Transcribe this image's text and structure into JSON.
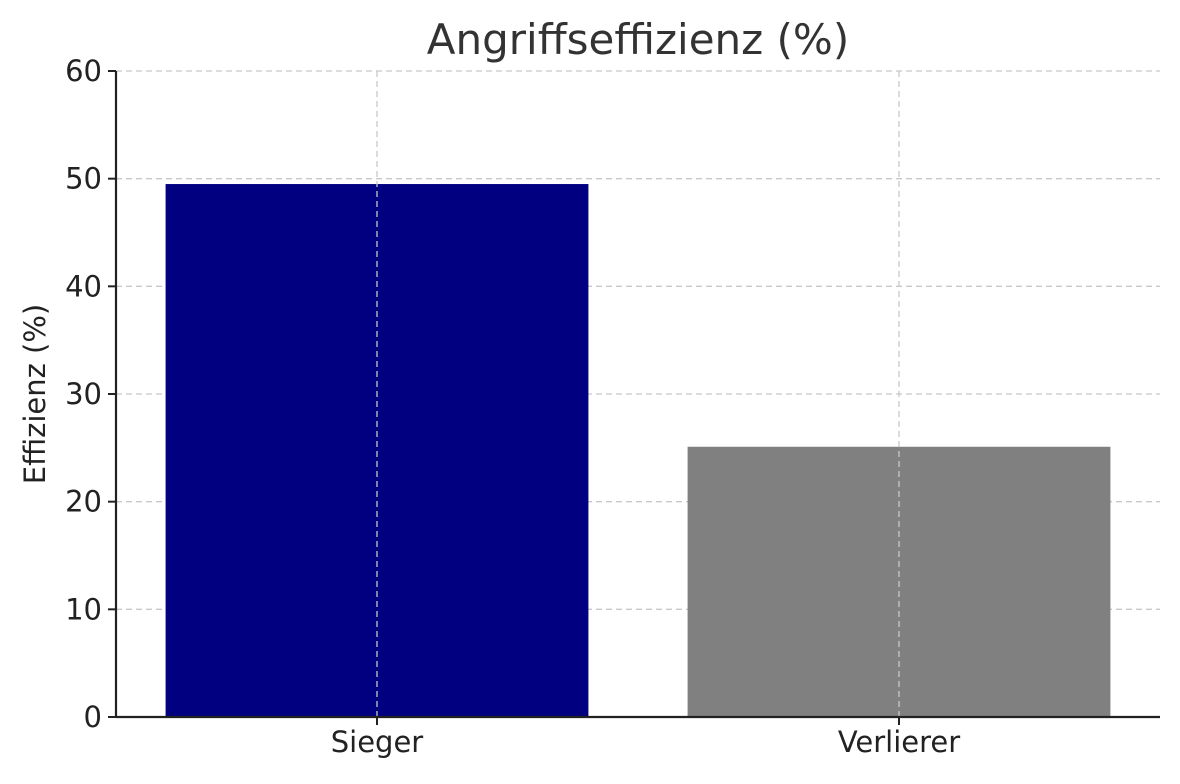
{
  "chart_data": {
    "type": "bar",
    "title": "Angriffseffizienz (%)",
    "xlabel": "",
    "ylabel": "Effizienz (%)",
    "categories": [
      "Sieger",
      "Verlierer"
    ],
    "values": [
      49.5,
      25.1
    ],
    "colors": [
      "#000080",
      "#808080"
    ],
    "ylim": [
      0,
      60
    ],
    "yticks": [
      "0",
      "10",
      "20",
      "30",
      "40",
      "50",
      "60"
    ],
    "grid": true,
    "legend": "none"
  }
}
